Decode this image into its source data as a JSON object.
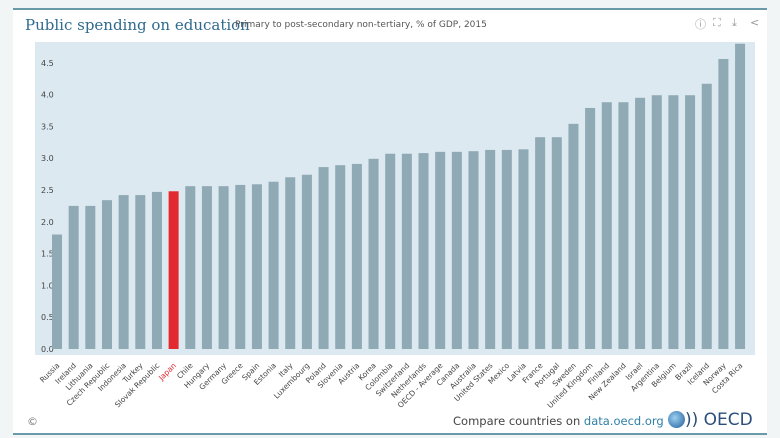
{
  "header": {
    "title": "Public spending on education",
    "subtitle": "Primary to post-secondary non-tertiary, % of GDP, 2015"
  },
  "toolbar": {
    "icons": [
      "info-icon",
      "fullscreen-icon",
      "download-icon",
      "share-icon"
    ]
  },
  "footer": {
    "copyright": "©",
    "compare_text": "Compare countries on ",
    "link": "data.oecd.org",
    "logo": "OECD"
  },
  "colors": {
    "bar": "#8fa9b5",
    "highlight": "#e3292f",
    "plot_bg": "#dce9f0"
  },
  "chart_data": {
    "type": "bar",
    "title": "Public spending on education",
    "subtitle": "Primary to post-secondary non-tertiary, % of GDP, 2015",
    "ylim": [
      0,
      4.9
    ],
    "yticks": [
      0.0,
      0.5,
      1.0,
      1.5,
      2.0,
      2.5,
      3.0,
      3.5,
      4.0,
      4.5
    ],
    "grid": false,
    "highlight": "Japan",
    "categories": [
      "Russia",
      "Ireland",
      "Lithuania",
      "Czech Republic",
      "Indonesia",
      "Turkey",
      "Slovak Republic",
      "Japan",
      "Chile",
      "Hungary",
      "Germany",
      "Greece",
      "Spain",
      "Estonia",
      "Italy",
      "Luxembourg",
      "Poland",
      "Slovenia",
      "Austria",
      "Korea",
      "Colombia",
      "Switzerland",
      "Netherlands",
      "OECD - Average",
      "Canada",
      "Australia",
      "United States",
      "Mexico",
      "Latvia",
      "France",
      "Portugal",
      "Sweden",
      "United Kingdom",
      "Finland",
      "New Zealand",
      "Israel",
      "Argentina",
      "Belgium",
      "Brazil",
      "Iceland",
      "Norway",
      "Costa Rica"
    ],
    "values": [
      1.8,
      2.25,
      2.25,
      2.34,
      2.42,
      2.42,
      2.47,
      2.48,
      2.56,
      2.56,
      2.56,
      2.58,
      2.59,
      2.63,
      2.7,
      2.74,
      2.86,
      2.89,
      2.91,
      2.99,
      3.07,
      3.07,
      3.08,
      3.1,
      3.1,
      3.11,
      3.13,
      3.13,
      3.14,
      3.33,
      3.33,
      3.54,
      3.79,
      3.88,
      3.88,
      3.95,
      3.99,
      3.99,
      3.99,
      4.17,
      4.56,
      4.8
    ]
  }
}
